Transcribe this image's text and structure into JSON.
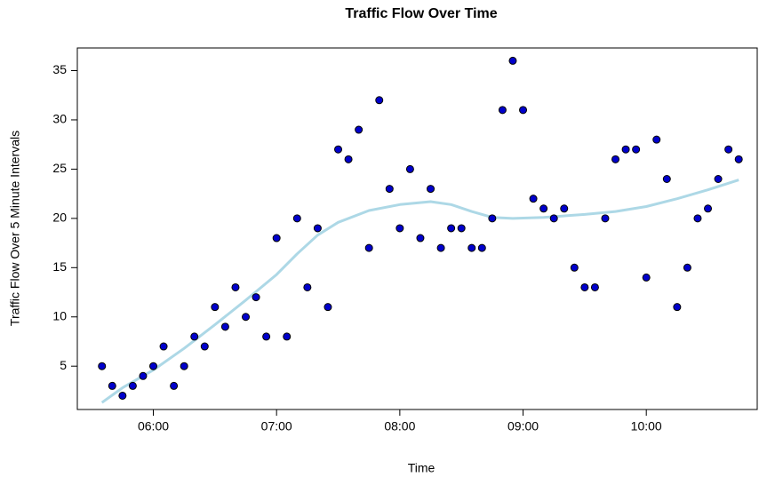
{
  "chart_data": {
    "type": "scatter",
    "title": "Traffic Flow Over Time",
    "x_label": "Time",
    "y_label": "Traffic Flow Over 5 Minute Intervals",
    "x": [
      "05:35",
      "05:40",
      "05:45",
      "05:50",
      "05:55",
      "06:00",
      "06:05",
      "06:10",
      "06:15",
      "06:20",
      "06:25",
      "06:30",
      "06:35",
      "06:40",
      "06:45",
      "06:50",
      "06:55",
      "07:00",
      "07:05",
      "07:10",
      "07:15",
      "07:20",
      "07:25",
      "07:30",
      "07:35",
      "07:40",
      "07:45",
      "07:50",
      "07:55",
      "08:00",
      "08:05",
      "08:10",
      "08:15",
      "08:20",
      "08:25",
      "08:30",
      "08:35",
      "08:40",
      "08:45",
      "08:50",
      "08:55",
      "09:00",
      "09:05",
      "09:10",
      "09:15",
      "09:20",
      "09:25",
      "09:30",
      "09:35",
      "09:40",
      "09:45",
      "09:50",
      "09:55",
      "10:00",
      "10:05",
      "10:10",
      "10:15",
      "10:20",
      "10:25",
      "10:30",
      "10:35",
      "10:40",
      "10:45"
    ],
    "values": [
      5,
      3,
      2,
      3,
      4,
      5,
      7,
      3,
      5,
      8,
      7,
      11,
      9,
      13,
      10,
      12,
      8,
      18,
      8,
      20,
      13,
      19,
      11,
      27,
      26,
      29,
      17,
      32,
      23,
      19,
      25,
      18,
      23,
      17,
      19,
      19,
      17,
      17,
      20,
      31,
      36,
      31,
      22,
      21,
      20,
      21,
      15,
      13,
      13,
      20,
      26,
      27,
      27,
      14,
      28,
      24,
      11,
      15,
      20,
      21,
      24,
      27,
      26
    ],
    "color": "#0000cc",
    "trend": {
      "color": "#add8e6",
      "x": [
        "05:35",
        "05:45",
        "06:00",
        "06:15",
        "06:30",
        "06:45",
        "07:00",
        "07:10",
        "07:20",
        "07:30",
        "07:45",
        "08:00",
        "08:15",
        "08:25",
        "08:35",
        "08:45",
        "08:55",
        "09:10",
        "09:30",
        "09:45",
        "10:00",
        "10:15",
        "10:30",
        "10:45"
      ],
      "values": [
        1.3,
        2.8,
        4.6,
        6.8,
        9.2,
        11.7,
        14.3,
        16.4,
        18.3,
        19.6,
        20.8,
        21.4,
        21.7,
        21.4,
        20.7,
        20.1,
        20.0,
        20.1,
        20.4,
        20.7,
        21.2,
        22.0,
        22.9,
        23.9
      ]
    },
    "xlim": [
      "05:23",
      "10:54"
    ],
    "xticks": [
      "06:00",
      "07:00",
      "08:00",
      "09:00",
      "10:00"
    ],
    "ylim": [
      0.6,
      37.3
    ],
    "yticks": [
      5,
      10,
      15,
      20,
      25,
      30,
      35
    ]
  }
}
